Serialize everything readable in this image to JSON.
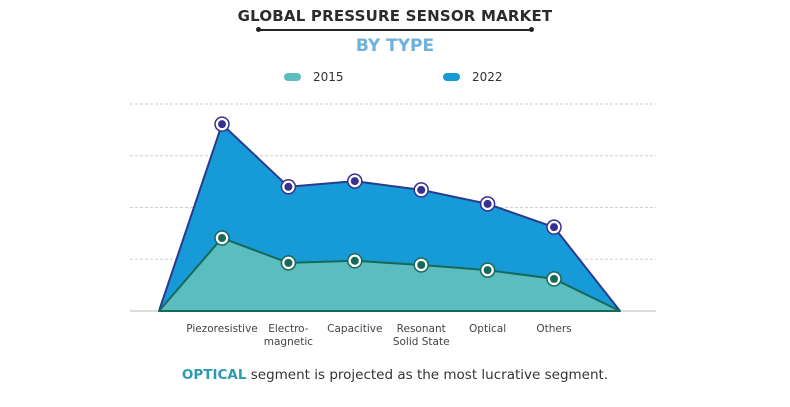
{
  "chart_data": {
    "type": "area",
    "title": "GLOBAL PRESSURE SENSOR MARKET",
    "subtitle": "BY TYPE",
    "categories": [
      "Piezoresistive",
      "Electro-\nmagnetic",
      "Capacitive",
      "Resonant\nSolid State",
      "Optical",
      "Others"
    ],
    "series": [
      {
        "name": "2015",
        "values": [
          1.41,
          0.93,
          0.97,
          0.89,
          0.79,
          0.62
        ],
        "color": "#5bbdbf",
        "marker_color": "#17695a"
      },
      {
        "name": "2022",
        "values": [
          3.61,
          2.4,
          2.51,
          2.34,
          2.07,
          1.62
        ],
        "color": "#169bd8",
        "marker_color": "#36308f"
      }
    ],
    "ylim": [
      0,
      4
    ],
    "xlabel": "",
    "ylabel": "",
    "grid": true,
    "legend": "top",
    "y_tick_labels_shown": false
  },
  "footer": {
    "highlight": "OPTICAL",
    "text": " segment is projected as the most lucrative segment."
  }
}
